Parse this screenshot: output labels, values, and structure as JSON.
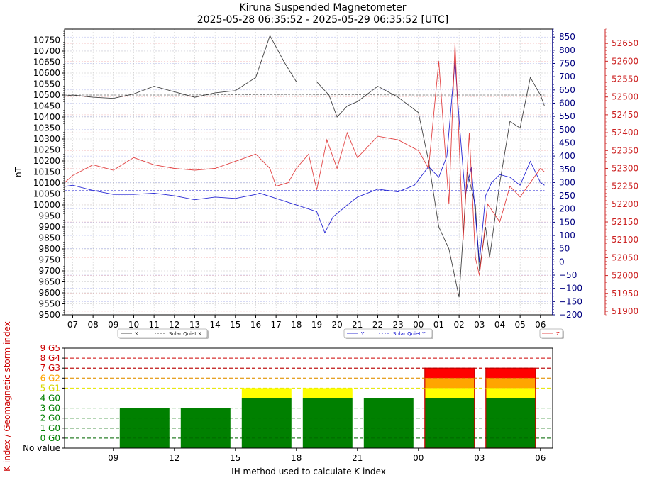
{
  "header": {
    "title": "Kiruna Suspended Magnetometer",
    "subtitle": "2025-05-28 06:35:52 - 2025-05-29 06:35:52 [UTC]"
  },
  "colors": {
    "x": "#222222",
    "y": "#0000cc",
    "z": "#dd2222",
    "g0": "#008000",
    "g1": "#ffff00",
    "g2": "#ffa500",
    "g3": "#ff0000"
  },
  "chart_data": [
    {
      "type": "line",
      "ylabel": "nT",
      "x_ticks": [
        "07",
        "08",
        "09",
        "10",
        "11",
        "12",
        "13",
        "14",
        "15",
        "16",
        "17",
        "18",
        "19",
        "20",
        "21",
        "22",
        "23",
        "00",
        "01",
        "02",
        "03",
        "04",
        "05",
        "06"
      ],
      "left_axis": {
        "ylim": [
          9500,
          10800
        ],
        "ticks": [
          9500,
          9550,
          9600,
          9650,
          9700,
          9750,
          9800,
          9850,
          9900,
          9950,
          10000,
          10050,
          10100,
          10150,
          10200,
          10250,
          10300,
          10350,
          10400,
          10450,
          10500,
          10550,
          10600,
          10650,
          10700,
          10750
        ]
      },
      "right_axis_y": {
        "ylim": [
          -200,
          880
        ],
        "ticks": [
          -200,
          -150,
          -100,
          -50,
          0,
          50,
          100,
          150,
          200,
          250,
          300,
          350,
          400,
          450,
          500,
          550,
          600,
          650,
          700,
          750,
          800,
          850
        ]
      },
      "right_axis_z": {
        "ylim": [
          51890,
          52690
        ],
        "ticks": [
          51900,
          51950,
          52000,
          52050,
          52100,
          52150,
          52200,
          52250,
          52300,
          52350,
          52400,
          52450,
          52500,
          52550,
          52600,
          52650
        ]
      },
      "legend": [
        "X",
        "Solar Quiet X",
        "Y",
        "Solar Quiet Y",
        "Z"
      ],
      "series": [
        {
          "name": "X",
          "axis": "left",
          "points": [
            [
              6.6,
              10495
            ],
            [
              7,
              10500
            ],
            [
              8,
              10490
            ],
            [
              9,
              10485
            ],
            [
              10,
              10505
            ],
            [
              11,
              10540
            ],
            [
              12,
              10515
            ],
            [
              13,
              10490
            ],
            [
              14,
              10510
            ],
            [
              15,
              10520
            ],
            [
              16,
              10580
            ],
            [
              16.7,
              10770
            ],
            [
              17.4,
              10650
            ],
            [
              18,
              10560
            ],
            [
              19,
              10560
            ],
            [
              19.6,
              10500
            ],
            [
              20,
              10400
            ],
            [
              20.5,
              10450
            ],
            [
              21,
              10470
            ],
            [
              22,
              10540
            ],
            [
              23,
              10490
            ],
            [
              24,
              10420
            ],
            [
              24.5,
              10200
            ],
            [
              25,
              9900
            ],
            [
              25.5,
              9800
            ],
            [
              26,
              9580
            ],
            [
              26.4,
              10150
            ],
            [
              26.8,
              10000
            ],
            [
              27,
              9700
            ],
            [
              27.3,
              9900
            ],
            [
              27.5,
              9760
            ],
            [
              28,
              10100
            ],
            [
              28.5,
              10380
            ],
            [
              29,
              10350
            ],
            [
              29.5,
              10580
            ],
            [
              30,
              10500
            ],
            [
              30.2,
              10450
            ]
          ]
        },
        {
          "name": "Solar Quiet X",
          "axis": "left",
          "points": [
            [
              6.6,
              10500
            ],
            [
              12,
              10500
            ],
            [
              18,
              10503
            ],
            [
              24,
              10500
            ],
            [
              30.2,
              10500
            ]
          ]
        },
        {
          "name": "Y",
          "axis": "right_y",
          "points": [
            [
              6.6,
              285
            ],
            [
              7,
              290
            ],
            [
              8,
              270
            ],
            [
              9,
              255
            ],
            [
              10,
              255
            ],
            [
              11,
              260
            ],
            [
              12,
              250
            ],
            [
              13,
              235
            ],
            [
              14,
              245
            ],
            [
              15,
              240
            ],
            [
              16,
              255
            ],
            [
              16.2,
              260
            ],
            [
              17,
              240
            ],
            [
              18,
              215
            ],
            [
              19,
              190
            ],
            [
              19.4,
              110
            ],
            [
              19.8,
              170
            ],
            [
              20.5,
              215
            ],
            [
              21,
              245
            ],
            [
              22,
              275
            ],
            [
              23,
              265
            ],
            [
              23.8,
              290
            ],
            [
              24.5,
              360
            ],
            [
              25,
              320
            ],
            [
              25.4,
              400
            ],
            [
              25.8,
              760
            ],
            [
              26,
              540
            ],
            [
              26.3,
              250
            ],
            [
              26.6,
              360
            ],
            [
              27,
              0
            ],
            [
              27.3,
              250
            ],
            [
              27.6,
              300
            ],
            [
              28,
              330
            ],
            [
              28.5,
              320
            ],
            [
              29,
              290
            ],
            [
              29.5,
              380
            ],
            [
              30,
              300
            ],
            [
              30.2,
              290
            ]
          ]
        },
        {
          "name": "Solar Quiet Y",
          "axis": "right_y",
          "points": [
            [
              6.6,
              270
            ],
            [
              30.2,
              270
            ]
          ]
        },
        {
          "name": "Z",
          "axis": "right_z",
          "points": [
            [
              6.6,
              52260
            ],
            [
              7,
              52280
            ],
            [
              8,
              52310
            ],
            [
              9,
              52295
            ],
            [
              10,
              52330
            ],
            [
              11,
              52310
            ],
            [
              12,
              52300
            ],
            [
              13,
              52295
            ],
            [
              14,
              52300
            ],
            [
              15,
              52320
            ],
            [
              16,
              52340
            ],
            [
              16.7,
              52300
            ],
            [
              17,
              52250
            ],
            [
              17.6,
              52260
            ],
            [
              18,
              52300
            ],
            [
              18.6,
              52340
            ],
            [
              19,
              52240
            ],
            [
              19.5,
              52380
            ],
            [
              20,
              52300
            ],
            [
              20.5,
              52400
            ],
            [
              21,
              52330
            ],
            [
              22,
              52390
            ],
            [
              23,
              52380
            ],
            [
              24,
              52350
            ],
            [
              24.5,
              52300
            ],
            [
              25,
              52600
            ],
            [
              25.5,
              52200
            ],
            [
              25.8,
              52650
            ],
            [
              26.2,
              52100
            ],
            [
              26.5,
              52400
            ],
            [
              26.8,
              52050
            ],
            [
              27,
              52000
            ],
            [
              27.4,
              52200
            ],
            [
              28,
              52150
            ],
            [
              28.5,
              52250
            ],
            [
              29,
              52220
            ],
            [
              29.5,
              52260
            ],
            [
              30,
              52300
            ],
            [
              30.2,
              52290
            ]
          ]
        }
      ]
    },
    {
      "type": "bar",
      "xlabel": "IH method used to calculate K index",
      "ylabel": "K index / Geomagnetic storm index",
      "x_ticks": [
        "09",
        "12",
        "15",
        "18",
        "21",
        "00",
        "03",
        "06"
      ],
      "y_levels": [
        "No value",
        "0 G0",
        "1 G0",
        "2 G0",
        "3 G0",
        "4 G0",
        "5 G1",
        "6 G2",
        "7 G3",
        "8 G4",
        "9 G5"
      ],
      "ylim": [
        -1,
        9
      ],
      "bars": [
        {
          "start_hour": 9,
          "end_hour": 12,
          "k": 3
        },
        {
          "start_hour": 12,
          "end_hour": 15,
          "k": 3
        },
        {
          "start_hour": 15,
          "end_hour": 18,
          "k": 5
        },
        {
          "start_hour": 18,
          "end_hour": 21,
          "k": 5
        },
        {
          "start_hour": 21,
          "end_hour": 24,
          "k": 4
        },
        {
          "start_hour": 24,
          "end_hour": 27,
          "k": 7
        },
        {
          "start_hour": 27,
          "end_hour": 30,
          "k": 7
        }
      ]
    }
  ]
}
